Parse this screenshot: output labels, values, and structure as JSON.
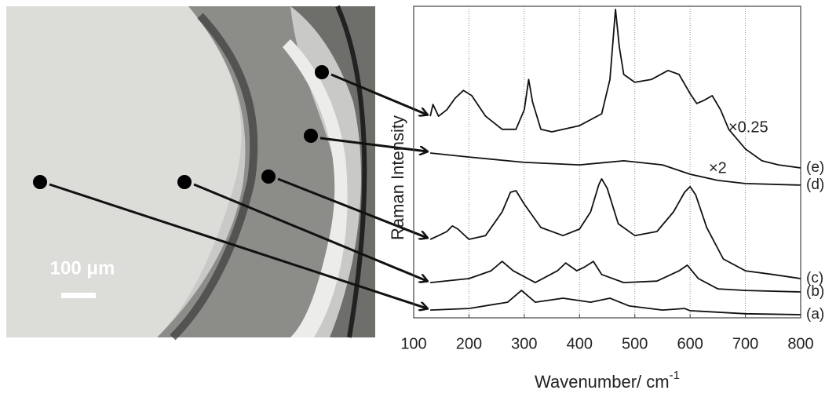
{
  "micrograph": {
    "scale_bar": "100 μm"
  },
  "chart_data": {
    "type": "line",
    "x_label": "Wavenumber/ cm",
    "x_label_superscript": "-1",
    "y_label": "Raman Intensity",
    "xlim": [
      100,
      800
    ],
    "xticks": [
      100,
      200,
      300,
      400,
      500,
      600,
      700,
      800
    ],
    "ylim": [
      0,
      100
    ],
    "grid": true,
    "annotations": [
      "×0.25",
      "×2"
    ],
    "series": [
      {
        "name": "(a)",
        "color": "#111",
        "x": [
          130,
          200,
          270,
          295,
          320,
          370,
          420,
          455,
          490,
          550,
          590,
          600,
          700,
          800
        ],
        "values": [
          2.5,
          3.0,
          5.0,
          8.8,
          5.0,
          6.3,
          5.0,
          6.3,
          3.8,
          2.5,
          3.0,
          2.3,
          1.3,
          1.0
        ]
      },
      {
        "name": "(b)",
        "color": "#111",
        "x": [
          130,
          200,
          240,
          260,
          280,
          320,
          360,
          375,
          395,
          410,
          425,
          440,
          480,
          540,
          580,
          595,
          615,
          650,
          700,
          800
        ],
        "values": [
          11.3,
          12.6,
          15.1,
          18.1,
          15.1,
          11.3,
          15.1,
          17.6,
          15.1,
          16.4,
          18.1,
          13.9,
          11.3,
          11.8,
          15.1,
          16.9,
          12.6,
          9.3,
          8.8,
          8.3
        ]
      },
      {
        "name": "(c)",
        "color": "#111",
        "x": [
          130,
          145,
          160,
          170,
          180,
          200,
          230,
          260,
          275,
          285,
          300,
          330,
          370,
          400,
          420,
          435,
          440,
          450,
          470,
          500,
          540,
          570,
          590,
          600,
          610,
          630,
          660,
          700,
          750,
          800
        ],
        "values": [
          25.2,
          26.4,
          27.7,
          29.5,
          28.5,
          25.2,
          26.4,
          34.0,
          40.3,
          40.8,
          36.5,
          29.0,
          26.4,
          28.5,
          34.0,
          42.8,
          44.6,
          41.6,
          30.2,
          26.4,
          27.7,
          34.0,
          40.3,
          42.1,
          39.5,
          29.0,
          18.9,
          15.1,
          13.9,
          12.6
        ]
      },
      {
        "name": "(d)",
        "color": "#111",
        "x": [
          130,
          200,
          300,
          400,
          480,
          550,
          600,
          650,
          700,
          800
        ],
        "values": [
          52.9,
          51.6,
          49.9,
          49.1,
          50.4,
          49.1,
          46.1,
          44.1,
          43.1,
          42.6
        ]
      },
      {
        "name": "(e)",
        "color": "#111",
        "x": [
          130,
          135,
          145,
          160,
          175,
          190,
          205,
          230,
          260,
          285,
          300,
          308,
          315,
          330,
          350,
          400,
          440,
          455,
          465,
          472,
          480,
          500,
          530,
          560,
          580,
          600,
          612,
          625,
          640,
          655,
          670,
          700,
          730,
          760,
          800
        ],
        "values": [
          64.7,
          68.5,
          64.7,
          66.8,
          70.5,
          73.0,
          71.3,
          64.7,
          60.5,
          60.5,
          66.8,
          76.5,
          69.3,
          60.5,
          59.7,
          61.7,
          65.5,
          76.5,
          99.0,
          86.9,
          78.1,
          75.6,
          76.5,
          79.4,
          78.1,
          72.0,
          68.8,
          69.8,
          71.3,
          66.8,
          60.5,
          54.2,
          50.4,
          49.1,
          48.1
        ]
      }
    ]
  }
}
